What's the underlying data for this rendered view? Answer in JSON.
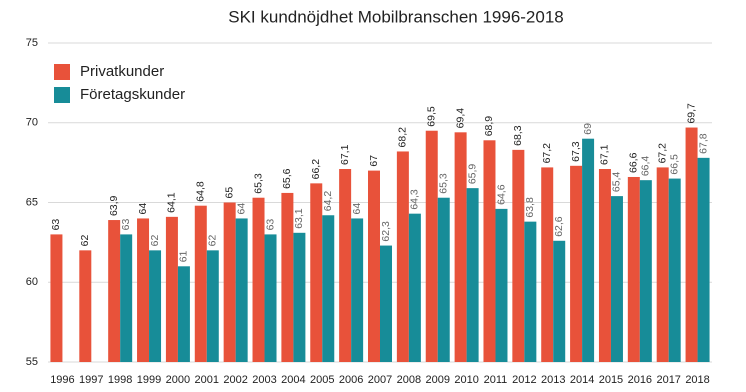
{
  "chart_data": {
    "type": "bar",
    "title": "SKI kundnöjdhet Mobilbranschen 1996-2018",
    "categories": [
      "1996",
      "1997",
      "1998",
      "1999",
      "2000",
      "2001",
      "2002",
      "2003",
      "2004",
      "2005",
      "2006",
      "2007",
      "2008",
      "2009",
      "2010",
      "2011",
      "2012",
      "2013",
      "2014",
      "2015",
      "2016",
      "2017",
      "2018"
    ],
    "series": [
      {
        "name": "Privatkunder",
        "color": "#e8523a",
        "values": [
          63,
          62,
          63.9,
          64,
          64.1,
          64.8,
          65,
          65.3,
          65.6,
          66.2,
          67.1,
          67,
          68.2,
          69.5,
          69.4,
          68.9,
          68.3,
          67.2,
          67.3,
          67.1,
          66.6,
          67.2,
          69.7
        ],
        "value_labels": [
          "63",
          "62",
          "63,9",
          "64",
          "64,1",
          "64,8",
          "65",
          "65,3",
          "65,6",
          "66,2",
          "67,1",
          "67",
          "68,2",
          "69,5",
          "69,4",
          "68,9",
          "68,3",
          "67,2",
          "67,3",
          "67,1",
          "66,6",
          "67,2",
          "69,7"
        ]
      },
      {
        "name": "Företagskunder",
        "color": "#178c98",
        "values": [
          null,
          null,
          63,
          62,
          61,
          62,
          64,
          63,
          63.1,
          64.2,
          64,
          62.3,
          64.3,
          65.3,
          65.9,
          64.6,
          63.8,
          62.6,
          69,
          65.4,
          66.4,
          66.5,
          67.8
        ],
        "value_labels": [
          null,
          null,
          "63",
          "62",
          "61",
          "62",
          "64",
          "63",
          "63,1",
          "64,2",
          "64",
          "62,3",
          "64,3",
          "65,3",
          "65,9",
          "64,6",
          "63,8",
          "62,6",
          "69",
          "65,4",
          "66,4",
          "66,5",
          "67,8"
        ]
      }
    ],
    "ylim": [
      55,
      75
    ],
    "yticks": [
      55,
      60,
      65,
      70,
      75
    ],
    "grid": true,
    "legend": "top-left"
  }
}
